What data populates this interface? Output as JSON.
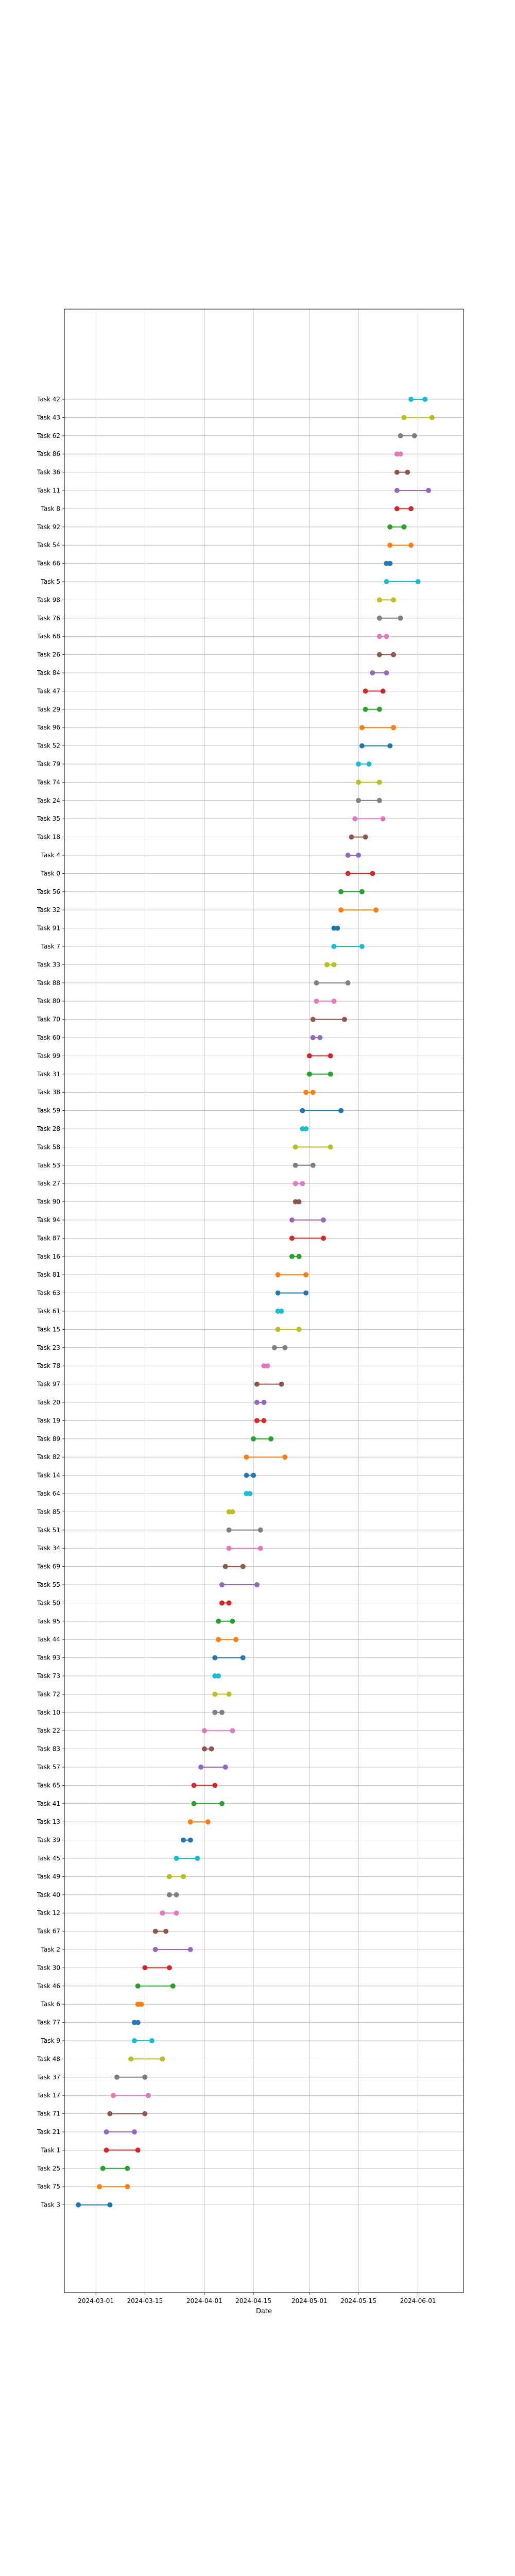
{
  "chart_data": {
    "type": "dumbbell",
    "title": "",
    "xlabel": "Date",
    "ylabel": "",
    "grid": true,
    "x_ticks": [
      "2024-03-01",
      "2024-03-15",
      "2024-04-01",
      "2024-04-15",
      "2024-05-01",
      "2024-05-15",
      "2024-06-01"
    ],
    "x_range": [
      "2024-02-21",
      "2024-06-14"
    ],
    "tasks": [
      {
        "name": "Task 3",
        "start": "2024-02-25",
        "end": "2024-03-05",
        "color": "#1f77b4"
      },
      {
        "name": "Task 75",
        "start": "2024-03-02",
        "end": "2024-03-10",
        "color": "#ff7f0e"
      },
      {
        "name": "Task 25",
        "start": "2024-03-03",
        "end": "2024-03-10",
        "color": "#2ca02c"
      },
      {
        "name": "Task 1",
        "start": "2024-03-04",
        "end": "2024-03-13",
        "color": "#d62728"
      },
      {
        "name": "Task 21",
        "start": "2024-03-04",
        "end": "2024-03-12",
        "color": "#9467bd"
      },
      {
        "name": "Task 71",
        "start": "2024-03-05",
        "end": "2024-03-15",
        "color": "#8c564b"
      },
      {
        "name": "Task 17",
        "start": "2024-03-06",
        "end": "2024-03-16",
        "color": "#e377c2"
      },
      {
        "name": "Task 37",
        "start": "2024-03-07",
        "end": "2024-03-15",
        "color": "#7f7f7f"
      },
      {
        "name": "Task 48",
        "start": "2024-03-11",
        "end": "2024-03-20",
        "color": "#bcbd22"
      },
      {
        "name": "Task 9",
        "start": "2024-03-12",
        "end": "2024-03-17",
        "color": "#17becf"
      },
      {
        "name": "Task 77",
        "start": "2024-03-12",
        "end": "2024-03-13",
        "color": "#1f77b4"
      },
      {
        "name": "Task 6",
        "start": "2024-03-13",
        "end": "2024-03-14",
        "color": "#ff7f0e"
      },
      {
        "name": "Task 46",
        "start": "2024-03-13",
        "end": "2024-03-23",
        "color": "#2ca02c"
      },
      {
        "name": "Task 30",
        "start": "2024-03-15",
        "end": "2024-03-22",
        "color": "#d62728"
      },
      {
        "name": "Task 2",
        "start": "2024-03-18",
        "end": "2024-03-28",
        "color": "#9467bd"
      },
      {
        "name": "Task 67",
        "start": "2024-03-18",
        "end": "2024-03-21",
        "color": "#8c564b"
      },
      {
        "name": "Task 12",
        "start": "2024-03-20",
        "end": "2024-03-24",
        "color": "#e377c2"
      },
      {
        "name": "Task 40",
        "start": "2024-03-22",
        "end": "2024-03-24",
        "color": "#7f7f7f"
      },
      {
        "name": "Task 49",
        "start": "2024-03-22",
        "end": "2024-03-26",
        "color": "#bcbd22"
      },
      {
        "name": "Task 45",
        "start": "2024-03-24",
        "end": "2024-03-30",
        "color": "#17becf"
      },
      {
        "name": "Task 39",
        "start": "2024-03-26",
        "end": "2024-03-28",
        "color": "#1f77b4"
      },
      {
        "name": "Task 13",
        "start": "2024-03-28",
        "end": "2024-04-02",
        "color": "#ff7f0e"
      },
      {
        "name": "Task 41",
        "start": "2024-03-29",
        "end": "2024-04-06",
        "color": "#2ca02c"
      },
      {
        "name": "Task 65",
        "start": "2024-03-29",
        "end": "2024-04-04",
        "color": "#d62728"
      },
      {
        "name": "Task 57",
        "start": "2024-03-31",
        "end": "2024-04-07",
        "color": "#9467bd"
      },
      {
        "name": "Task 83",
        "start": "2024-04-01",
        "end": "2024-04-03",
        "color": "#8c564b"
      },
      {
        "name": "Task 22",
        "start": "2024-04-01",
        "end": "2024-04-09",
        "color": "#e377c2"
      },
      {
        "name": "Task 10",
        "start": "2024-04-04",
        "end": "2024-04-06",
        "color": "#7f7f7f"
      },
      {
        "name": "Task 72",
        "start": "2024-04-04",
        "end": "2024-04-08",
        "color": "#bcbd22"
      },
      {
        "name": "Task 73",
        "start": "2024-04-04",
        "end": "2024-04-05",
        "color": "#17becf"
      },
      {
        "name": "Task 93",
        "start": "2024-04-04",
        "end": "2024-04-12",
        "color": "#1f77b4"
      },
      {
        "name": "Task 44",
        "start": "2024-04-05",
        "end": "2024-04-10",
        "color": "#ff7f0e"
      },
      {
        "name": "Task 95",
        "start": "2024-04-05",
        "end": "2024-04-09",
        "color": "#2ca02c"
      },
      {
        "name": "Task 50",
        "start": "2024-04-06",
        "end": "2024-04-08",
        "color": "#d62728"
      },
      {
        "name": "Task 55",
        "start": "2024-04-06",
        "end": "2024-04-16",
        "color": "#9467bd"
      },
      {
        "name": "Task 69",
        "start": "2024-04-07",
        "end": "2024-04-12",
        "color": "#8c564b"
      },
      {
        "name": "Task 34",
        "start": "2024-04-08",
        "end": "2024-04-17",
        "color": "#e377c2"
      },
      {
        "name": "Task 51",
        "start": "2024-04-08",
        "end": "2024-04-17",
        "color": "#7f7f7f"
      },
      {
        "name": "Task 85",
        "start": "2024-04-08",
        "end": "2024-04-09",
        "color": "#bcbd22"
      },
      {
        "name": "Task 64",
        "start": "2024-04-13",
        "end": "2024-04-14",
        "color": "#17becf"
      },
      {
        "name": "Task 14",
        "start": "2024-04-13",
        "end": "2024-04-15",
        "color": "#1f77b4"
      },
      {
        "name": "Task 82",
        "start": "2024-04-13",
        "end": "2024-04-24",
        "color": "#ff7f0e"
      },
      {
        "name": "Task 89",
        "start": "2024-04-15",
        "end": "2024-04-20",
        "color": "#2ca02c"
      },
      {
        "name": "Task 19",
        "start": "2024-04-16",
        "end": "2024-04-18",
        "color": "#d62728"
      },
      {
        "name": "Task 20",
        "start": "2024-04-16",
        "end": "2024-04-18",
        "color": "#9467bd"
      },
      {
        "name": "Task 97",
        "start": "2024-04-16",
        "end": "2024-04-23",
        "color": "#8c564b"
      },
      {
        "name": "Task 78",
        "start": "2024-04-18",
        "end": "2024-04-19",
        "color": "#e377c2"
      },
      {
        "name": "Task 23",
        "start": "2024-04-21",
        "end": "2024-04-24",
        "color": "#7f7f7f"
      },
      {
        "name": "Task 15",
        "start": "2024-04-22",
        "end": "2024-04-28",
        "color": "#bcbd22"
      },
      {
        "name": "Task 61",
        "start": "2024-04-22",
        "end": "2024-04-23",
        "color": "#17becf"
      },
      {
        "name": "Task 63",
        "start": "2024-04-22",
        "end": "2024-04-30",
        "color": "#1f77b4"
      },
      {
        "name": "Task 81",
        "start": "2024-04-22",
        "end": "2024-04-30",
        "color": "#ff7f0e"
      },
      {
        "name": "Task 16",
        "start": "2024-04-26",
        "end": "2024-04-28",
        "color": "#2ca02c"
      },
      {
        "name": "Task 87",
        "start": "2024-04-26",
        "end": "2024-05-05",
        "color": "#d62728"
      },
      {
        "name": "Task 94",
        "start": "2024-04-26",
        "end": "2024-05-05",
        "color": "#9467bd"
      },
      {
        "name": "Task 90",
        "start": "2024-04-27",
        "end": "2024-04-28",
        "color": "#8c564b"
      },
      {
        "name": "Task 27",
        "start": "2024-04-27",
        "end": "2024-04-29",
        "color": "#e377c2"
      },
      {
        "name": "Task 53",
        "start": "2024-04-27",
        "end": "2024-05-02",
        "color": "#7f7f7f"
      },
      {
        "name": "Task 58",
        "start": "2024-04-27",
        "end": "2024-05-07",
        "color": "#bcbd22"
      },
      {
        "name": "Task 28",
        "start": "2024-04-29",
        "end": "2024-04-30",
        "color": "#17becf"
      },
      {
        "name": "Task 59",
        "start": "2024-04-29",
        "end": "2024-05-10",
        "color": "#1f77b4"
      },
      {
        "name": "Task 38",
        "start": "2024-04-30",
        "end": "2024-05-02",
        "color": "#ff7f0e"
      },
      {
        "name": "Task 31",
        "start": "2024-05-01",
        "end": "2024-05-07",
        "color": "#2ca02c"
      },
      {
        "name": "Task 99",
        "start": "2024-05-01",
        "end": "2024-05-07",
        "color": "#d62728"
      },
      {
        "name": "Task 60",
        "start": "2024-05-02",
        "end": "2024-05-04",
        "color": "#9467bd"
      },
      {
        "name": "Task 70",
        "start": "2024-05-02",
        "end": "2024-05-11",
        "color": "#8c564b"
      },
      {
        "name": "Task 80",
        "start": "2024-05-03",
        "end": "2024-05-08",
        "color": "#e377c2"
      },
      {
        "name": "Task 88",
        "start": "2024-05-03",
        "end": "2024-05-12",
        "color": "#7f7f7f"
      },
      {
        "name": "Task 33",
        "start": "2024-05-06",
        "end": "2024-05-08",
        "color": "#bcbd22"
      },
      {
        "name": "Task 7",
        "start": "2024-05-08",
        "end": "2024-05-16",
        "color": "#17becf"
      },
      {
        "name": "Task 91",
        "start": "2024-05-08",
        "end": "2024-05-09",
        "color": "#1f77b4"
      },
      {
        "name": "Task 32",
        "start": "2024-05-10",
        "end": "2024-05-20",
        "color": "#ff7f0e"
      },
      {
        "name": "Task 56",
        "start": "2024-05-10",
        "end": "2024-05-16",
        "color": "#2ca02c"
      },
      {
        "name": "Task 0",
        "start": "2024-05-12",
        "end": "2024-05-19",
        "color": "#d62728"
      },
      {
        "name": "Task 4",
        "start": "2024-05-12",
        "end": "2024-05-15",
        "color": "#9467bd"
      },
      {
        "name": "Task 18",
        "start": "2024-05-13",
        "end": "2024-05-17",
        "color": "#8c564b"
      },
      {
        "name": "Task 35",
        "start": "2024-05-14",
        "end": "2024-05-22",
        "color": "#e377c2"
      },
      {
        "name": "Task 24",
        "start": "2024-05-15",
        "end": "2024-05-21",
        "color": "#7f7f7f"
      },
      {
        "name": "Task 74",
        "start": "2024-05-15",
        "end": "2024-05-21",
        "color": "#bcbd22"
      },
      {
        "name": "Task 79",
        "start": "2024-05-15",
        "end": "2024-05-18",
        "color": "#17becf"
      },
      {
        "name": "Task 52",
        "start": "2024-05-16",
        "end": "2024-05-24",
        "color": "#1f77b4"
      },
      {
        "name": "Task 96",
        "start": "2024-05-16",
        "end": "2024-05-25",
        "color": "#ff7f0e"
      },
      {
        "name": "Task 29",
        "start": "2024-05-17",
        "end": "2024-05-21",
        "color": "#2ca02c"
      },
      {
        "name": "Task 47",
        "start": "2024-05-17",
        "end": "2024-05-22",
        "color": "#d62728"
      },
      {
        "name": "Task 84",
        "start": "2024-05-19",
        "end": "2024-05-23",
        "color": "#9467bd"
      },
      {
        "name": "Task 26",
        "start": "2024-05-21",
        "end": "2024-05-25",
        "color": "#8c564b"
      },
      {
        "name": "Task 68",
        "start": "2024-05-21",
        "end": "2024-05-23",
        "color": "#e377c2"
      },
      {
        "name": "Task 76",
        "start": "2024-05-21",
        "end": "2024-05-27",
        "color": "#7f7f7f"
      },
      {
        "name": "Task 98",
        "start": "2024-05-21",
        "end": "2024-05-25",
        "color": "#bcbd22"
      },
      {
        "name": "Task 5",
        "start": "2024-05-23",
        "end": "2024-06-01",
        "color": "#17becf"
      },
      {
        "name": "Task 66",
        "start": "2024-05-23",
        "end": "2024-05-24",
        "color": "#1f77b4"
      },
      {
        "name": "Task 54",
        "start": "2024-05-24",
        "end": "2024-05-30",
        "color": "#ff7f0e"
      },
      {
        "name": "Task 92",
        "start": "2024-05-24",
        "end": "2024-05-28",
        "color": "#2ca02c"
      },
      {
        "name": "Task 8",
        "start": "2024-05-26",
        "end": "2024-05-30",
        "color": "#d62728"
      },
      {
        "name": "Task 11",
        "start": "2024-05-26",
        "end": "2024-06-04",
        "color": "#9467bd"
      },
      {
        "name": "Task 36",
        "start": "2024-05-26",
        "end": "2024-05-29",
        "color": "#8c564b"
      },
      {
        "name": "Task 86",
        "start": "2024-05-26",
        "end": "2024-05-27",
        "color": "#e377c2"
      },
      {
        "name": "Task 62",
        "start": "2024-05-27",
        "end": "2024-05-31",
        "color": "#7f7f7f"
      },
      {
        "name": "Task 43",
        "start": "2024-05-28",
        "end": "2024-06-05",
        "color": "#bcbd22"
      },
      {
        "name": "Task 42",
        "start": "2024-05-30",
        "end": "2024-06-03",
        "color": "#17becf"
      }
    ]
  }
}
